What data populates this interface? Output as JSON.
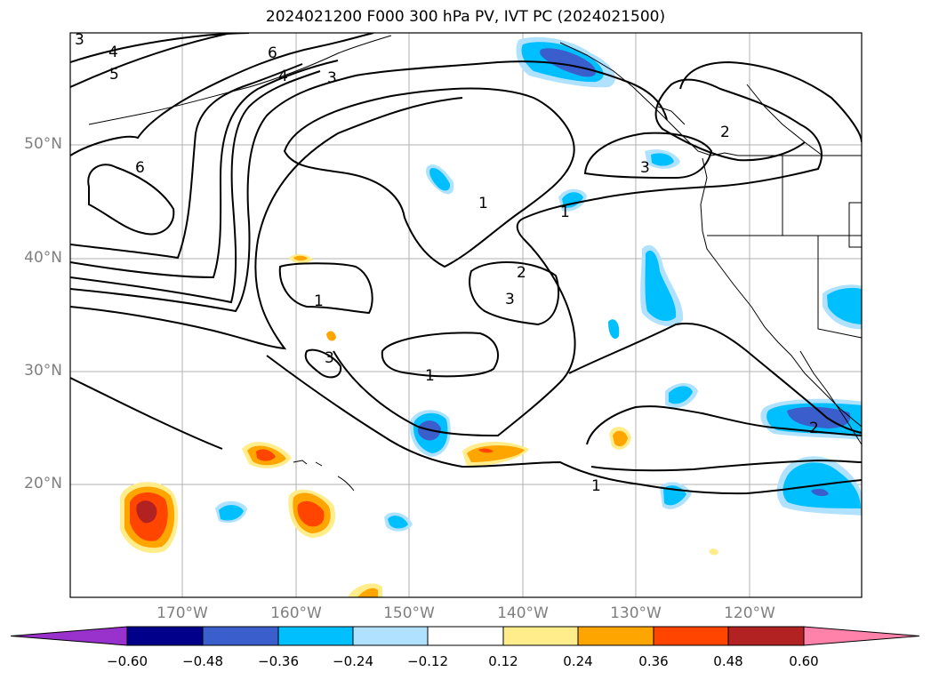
{
  "title": "2024021200 F000 300 hPa PV, IVT PC (2024021500)",
  "lat_labels": [
    "50°N",
    "40°N",
    "30°N",
    "20°N"
  ],
  "lon_labels": [
    "170°W",
    "160°W",
    "150°W",
    "140°W",
    "130°W",
    "120°W"
  ],
  "colorbar": {
    "tick_labels": [
      "−0.60",
      "−0.48",
      "−0.36",
      "−0.24",
      "−0.12",
      "0.12",
      "0.24",
      "0.36",
      "0.48",
      "0.60"
    ],
    "colors": [
      "#9932cc",
      "#00008b",
      "#3a5fcd",
      "#00bfff",
      "#b0e2ff",
      "#ffffff",
      "#ffec8b",
      "#ffa500",
      "#ff4500",
      "#b22222",
      "#ff82ab"
    ]
  },
  "contour_labels": [
    "3",
    "4",
    "5",
    "6",
    "4",
    "3",
    "6",
    "1",
    "1",
    "2",
    "3",
    "1",
    "3",
    "1",
    "2",
    "3",
    "2",
    "1"
  ]
}
